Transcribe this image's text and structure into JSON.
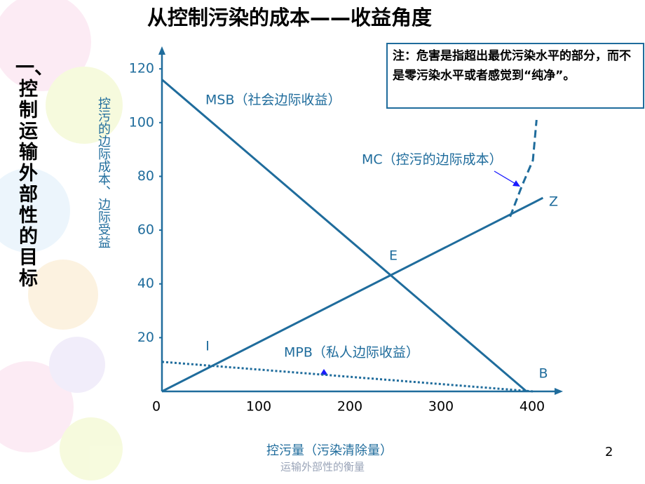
{
  "slide": {
    "title": "从控制污染的成本——收益角度",
    "side_prefix": "一、",
    "side_title": "控制运输外部性的目标",
    "note": "注：危害是指超出最优污染水平的部分，而不是零污染水平或者感觉到“纯净”。",
    "page_number": "2",
    "footer": "运输外部性的衡量"
  },
  "chart_data": {
    "type": "line",
    "y_label": "控污的边际成本、边际受益",
    "x_label": "控污量（污染清除量）",
    "xlim": [
      0,
      420
    ],
    "ylim": [
      0,
      125
    ],
    "xticks": [
      0,
      100,
      200,
      300,
      400
    ],
    "yticks": [
      20,
      40,
      60,
      80,
      100,
      120
    ],
    "series": [
      {
        "name": "MSB（社会边际收益）",
        "color": "#1f6c9c",
        "style": "solid",
        "x": [
          0,
          400
        ],
        "values": [
          116,
          0
        ]
      },
      {
        "name": "Z",
        "color": "#1f6c9c",
        "style": "solid",
        "x": [
          0,
          418
        ],
        "values": [
          0,
          72
        ]
      },
      {
        "name": "MPB（私人边际收益）",
        "color": "#1f6c9c",
        "style": "dotted",
        "x": [
          0,
          407
        ],
        "values": [
          11,
          0
        ]
      },
      {
        "name": "MC（控污的边际成本）",
        "color": "#1f6c9c",
        "style": "dashed",
        "x": [
          382,
          395,
          407,
          411
        ],
        "values": [
          65,
          76.5,
          86,
          101
        ]
      }
    ],
    "annotations": [
      "E",
      "I",
      "B"
    ]
  }
}
